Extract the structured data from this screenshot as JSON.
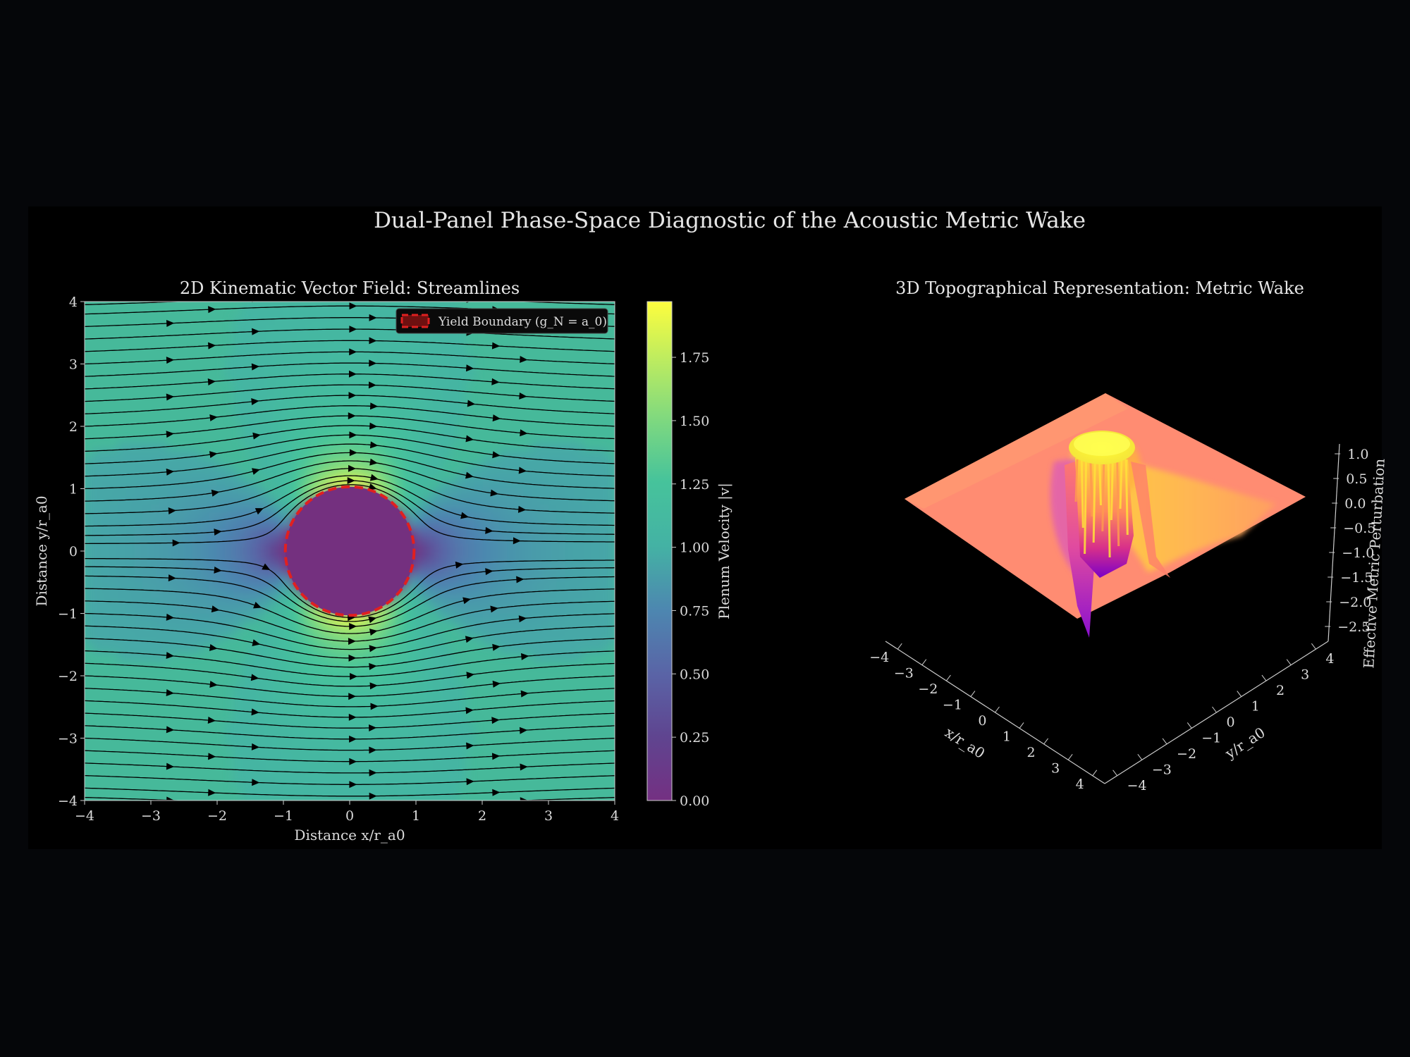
{
  "figure": {
    "title": "Dual-Panel Phase-Space Diagnostic of the Acoustic Metric Wake",
    "background": "#000000"
  },
  "chart_data": [
    {
      "type": "heatmap",
      "subtype": "streamplot",
      "title": "2D Kinematic Vector Field: Streamlines",
      "xlabel": "Distance x/r_a0",
      "ylabel": "Distance y/r_a0",
      "xlim": [
        -4,
        4
      ],
      "ylim": [
        -4,
        4
      ],
      "xticks": [
        "−4",
        "−3",
        "−2",
        "−1",
        "0",
        "1",
        "2",
        "3",
        "4"
      ],
      "yticks": [
        "−4",
        "−3",
        "−2",
        "−1",
        "0",
        "1",
        "2",
        "3",
        "4"
      ],
      "field": "Plenum velocity magnitude, uniform flow U=1 past a cylinder of radius 1",
      "colorscale": "viridis",
      "colorbar": {
        "label": "Plenum Velocity |v|",
        "range": [
          0,
          1.97
        ],
        "ticks": [
          "0.00",
          "0.25",
          "0.50",
          "0.75",
          "1.00",
          "1.25",
          "1.50",
          "1.75"
        ]
      },
      "obstacle": {
        "center": [
          0,
          0
        ],
        "radius": 1,
        "fill": "#74307f"
      },
      "legend": {
        "position": "top-right",
        "entries": [
          {
            "label": "Yield Boundary (g_N = a_0)",
            "color": "#e02020",
            "style": "dashed"
          }
        ]
      },
      "streamline_start_y": [
        -3.95,
        -3.8,
        -3.6,
        -3.4,
        -3.2,
        -3.0,
        -2.8,
        -2.6,
        -2.4,
        -2.2,
        -2.0,
        -1.8,
        -1.6,
        -1.4,
        -1.2,
        -1.0,
        -0.8,
        -0.6,
        -0.4,
        -0.25,
        -0.12,
        0.12,
        0.25,
        0.4,
        0.6,
        0.8,
        1.0,
        1.2,
        1.4,
        1.6,
        1.8,
        2.0,
        2.2,
        2.4,
        2.6,
        2.8,
        3.0,
        3.2,
        3.4,
        3.6,
        3.8,
        3.95
      ]
    },
    {
      "type": "surface",
      "title": "3D Topographical Representation: Metric Wake",
      "xlabel": "x/r_a0",
      "ylabel": "y/r_a0",
      "zlabel": "Effective Metric Perturbation",
      "xticks": [
        "−4",
        "−3",
        "−2",
        "−1",
        "0",
        "1",
        "2",
        "3",
        "4"
      ],
      "yticks": [
        "−4",
        "−3",
        "−2",
        "−1",
        "0",
        "1",
        "2",
        "3",
        "4"
      ],
      "zticks": [
        "1.0",
        "0.5",
        "0.0",
        "−0.5",
        "−1.0",
        "−1.5",
        "−2.0",
        "−2.5"
      ],
      "zlim": [
        -2.8,
        1.2
      ],
      "colorscale": "spring-to-plasma",
      "features": {
        "baseline_level": 0.0,
        "central_plateau": {
          "center": [
            0,
            0
          ],
          "radius": 1,
          "z": 1.0
        },
        "downstream_wake_ridge_z": 0.3,
        "upstream_trough_min_z": -2.7
      }
    }
  ]
}
